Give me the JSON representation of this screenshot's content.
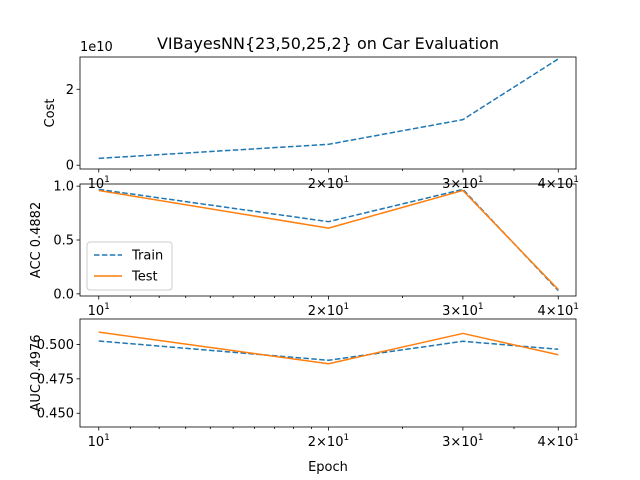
{
  "chart_data": {
    "type": "line",
    "title": "VIBayesNN{23,50,25,2} on Car Evaluation",
    "xlabel": "Epoch",
    "xscale": "log",
    "x": [
      10,
      20,
      30,
      40
    ],
    "x_tick_labels": [
      {
        "base": "10",
        "exp": "1"
      },
      {
        "base": "2×10",
        "exp": "1"
      },
      {
        "base": "3×10",
        "exp": "1"
      },
      {
        "base": "4×10",
        "exp": "1"
      }
    ],
    "panels": [
      {
        "ylabel": "Cost",
        "offset_label": "1e10",
        "ylim": [
          -0.1,
          2.85
        ],
        "yticks": [
          0,
          2
        ],
        "ytick_labels": [
          "0",
          "2"
        ],
        "series": [
          {
            "name": "Train",
            "values": [
              0.18,
              0.55,
              1.2,
              2.8
            ],
            "color": "#1f77b4",
            "style": "dashed"
          }
        ]
      },
      {
        "ylabel": "ACC 0.4882",
        "ylim": [
          -0.02,
          1.02
        ],
        "yticks": [
          0.0,
          0.5,
          1.0
        ],
        "ytick_labels": [
          "0.0",
          "0.5",
          "1.0"
        ],
        "legend": "center-left",
        "series": [
          {
            "name": "Train",
            "values": [
              0.97,
              0.67,
              0.97,
              0.03
            ],
            "color": "#1f77b4",
            "style": "dashed"
          },
          {
            "name": "Test",
            "values": [
              0.96,
              0.61,
              0.96,
              0.04
            ],
            "color": "#ff7f0e",
            "style": "solid"
          }
        ]
      },
      {
        "ylabel": "AUC 0.4976",
        "ylim": [
          0.44,
          0.5185
        ],
        "yticks": [
          0.45,
          0.475,
          0.5
        ],
        "ytick_labels": [
          "0.450",
          "0.475",
          "0.500"
        ],
        "series": [
          {
            "name": "Train",
            "values": [
              0.5025,
              0.4885,
              0.5023,
              0.4965
            ],
            "color": "#1f77b4",
            "style": "dashed"
          },
          {
            "name": "Test",
            "values": [
              0.509,
              0.486,
              0.508,
              0.4925
            ],
            "color": "#ff7f0e",
            "style": "solid"
          }
        ]
      }
    ]
  }
}
